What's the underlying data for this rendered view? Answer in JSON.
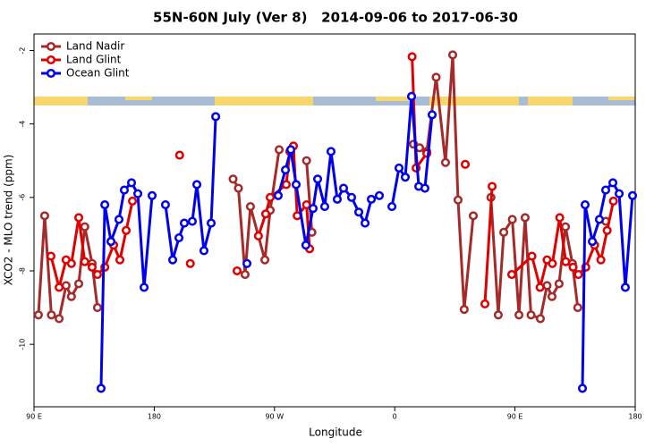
{
  "chart_data": {
    "type": "line",
    "title": "55N-60N July (Ver 8)   2014-09-06 to 2017-06-30",
    "x_label": "Longitude",
    "y_label": "XCO2 - MLO trend (ppm)",
    "xlim": [
      90,
      540
    ],
    "ylim": [
      -11.7,
      -1.55
    ],
    "xticks": [
      {
        "value": 90,
        "label": "90 E"
      },
      180,
      {
        "value": 270,
        "label": "90 W"
      },
      {
        "value": 360,
        "label": "0"
      },
      {
        "value": 450,
        "label": "90 E"
      },
      {
        "value": 540,
        "label": "180"
      }
    ],
    "yticks": [
      -10,
      -8,
      -6,
      -4,
      -2
    ],
    "legend": "top-left",
    "series": [
      {
        "name": "Land Nadir",
        "color": "#a52a2a",
        "x": [
          93.3,
          98,
          103,
          108.8,
          114,
          118,
          123.5,
          128,
          133.5,
          137.5,
          190,
          239,
          243,
          248,
          252,
          262.8,
          266.8,
          273.5,
          283,
          294,
          298,
          340,
          374,
          378.6,
          384,
          391,
          398,
          403.4,
          407.4,
          412,
          418.8,
          425,
          432,
          437.5,
          441.6,
          448,
          453,
          457.6,
          462,
          469,
          474,
          477.7,
          483,
          487.8,
          493,
          497,
          508,
          518
        ],
        "values": [
          -9.2,
          -6.5,
          -9.2,
          -9.3,
          -8.4,
          -8.7,
          -8.35,
          -6.8,
          -7.8,
          -9.0,
          null,
          -5.5,
          -5.75,
          -8.1,
          -6.25,
          -7.7,
          -6.35,
          -4.7,
          null,
          -5.0,
          -6.95,
          null,
          -4.55,
          -4.65,
          -4.75,
          -2.73,
          -5.05,
          -2.12,
          -6.07,
          -9.05,
          -6.5,
          null,
          -6.0,
          -9.2,
          -6.95,
          -6.6,
          -9.2,
          -6.55,
          -9.2,
          -9.3,
          -8.4,
          -8.7,
          -8.35,
          -6.8,
          -7.8,
          -9.0,
          null,
          -6.65
        ]
      },
      {
        "name": "Land Glint",
        "color": "#e00000",
        "x": [
          102.7,
          108.8,
          114,
          118,
          123.5,
          128,
          133.5,
          137.5,
          143,
          149.6,
          154.3,
          159,
          163.7,
          180,
          199,
          203,
          207,
          225,
          242,
          250,
          258,
          263.4,
          266.8,
          278.8,
          281.5,
          284.2,
          287,
          294,
          296.3,
          330,
          373,
          376,
          384,
          400,
          412.8,
          420,
          427.5,
          432.9,
          440,
          447.6,
          462.7,
          468.8,
          474,
          478,
          483.5,
          488,
          493.5,
          497.5,
          503,
          509.6,
          514.3,
          519,
          523.7
        ],
        "values": [
          -7.6,
          -8.45,
          -7.7,
          -7.8,
          -6.55,
          -7.75,
          -7.9,
          -8.1,
          -7.9,
          -7.3,
          -7.7,
          -6.9,
          -6.1,
          null,
          -4.85,
          null,
          -7.8,
          null,
          -8.0,
          null,
          -7.05,
          -6.45,
          -6.0,
          -5.65,
          -4.75,
          -4.6,
          -6.5,
          -6.2,
          -7.4,
          null,
          -2.17,
          -5.2,
          -4.8,
          null,
          -5.1,
          null,
          -8.9,
          -5.7,
          null,
          -8.1,
          -7.6,
          -8.45,
          -7.7,
          -7.8,
          -6.55,
          -7.75,
          -7.9,
          -8.1,
          -7.9,
          -7.3,
          -7.7,
          -6.9,
          -6.1
        ]
      },
      {
        "name": "Ocean Glint",
        "color": "#0000ee",
        "x": [
          140.2,
          143,
          147.6,
          153.6,
          157.6,
          163,
          167.7,
          172.4,
          178.4,
          183,
          188.4,
          193.8,
          198.5,
          202.5,
          208.5,
          211.9,
          217.2,
          222.6,
          226,
          240,
          249.4,
          260,
          272.8,
          278.2,
          282.2,
          286.2,
          293.5,
          298.9,
          302.3,
          307.6,
          312.3,
          317,
          321.7,
          327.7,
          333.1,
          337.8,
          342.5,
          348.5,
          353,
          357.9,
          363.2,
          367.9,
          372.6,
          378,
          382.6,
          388,
          450,
          500.5,
          502.5,
          507.9,
          513.2,
          517.9,
          523.3,
          528,
          532.6,
          538
        ],
        "values": [
          -11.2,
          -6.2,
          -7.2,
          -6.6,
          -5.8,
          -5.6,
          -5.9,
          -8.45,
          -5.95,
          null,
          -6.2,
          -7.7,
          -7.1,
          -6.7,
          -6.65,
          -5.65,
          -7.45,
          -6.7,
          -3.8,
          null,
          -7.8,
          null,
          -5.95,
          -5.25,
          -4.7,
          -5.65,
          -7.3,
          -6.3,
          -5.5,
          -6.25,
          -4.75,
          -6.05,
          -5.75,
          -6.0,
          -6.4,
          -6.7,
          -6.05,
          -5.95,
          null,
          -6.25,
          -5.2,
          -5.45,
          -3.25,
          -5.7,
          -5.75,
          -3.75,
          null,
          -11.2,
          -6.2,
          -7.2,
          -6.6,
          -5.8,
          -5.6,
          -5.9,
          -8.45,
          -5.95
        ]
      }
    ]
  }
}
